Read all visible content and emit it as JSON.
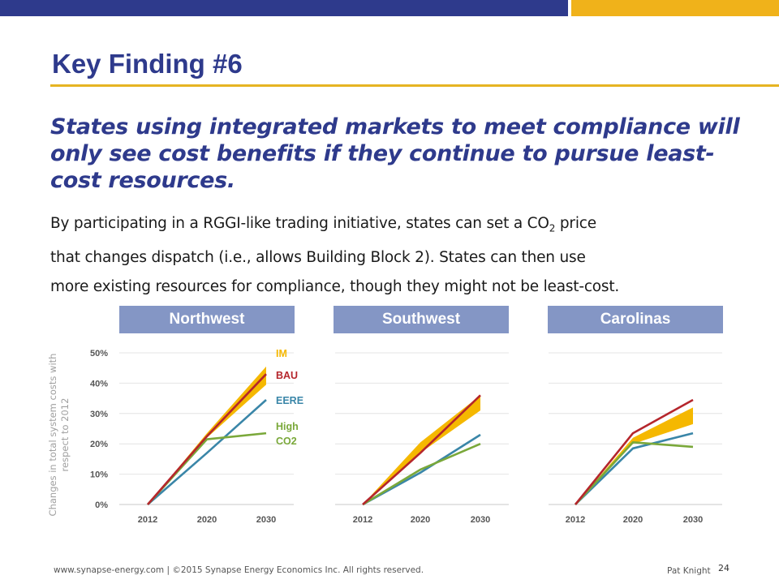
{
  "header": {
    "title": "Key Finding #6",
    "headline": "States using integrated markets to meet compliance will only see cost benefits if they continue to pursue least-cost resources.",
    "body": {
      "line1_a": "By participating in a RGGI-like trading initiative, states can set a CO",
      "line1_sub": "2",
      "line1_b": " price",
      "line2": "that changes dispatch (i.e., allows Building Block 2). States can then use",
      "line3": "more existing resources for compliance, though they might not be least-cost."
    }
  },
  "colors": {
    "brand_blue": "#2e3a8c",
    "accent_gold": "#f0b21a",
    "panel_header": "#8496c5",
    "IM": "#f5b800",
    "BAU": "#b5262c",
    "EERE": "#3a86a8",
    "High_CO2": "#7aa83a"
  },
  "footer": {
    "source": "www.synapse-energy.com  |  ©2015 Synapse Energy Economics Inc. All rights reserved.",
    "author": "Pat Knight",
    "page": "24"
  },
  "chart_data": [
    {
      "type": "line",
      "title": "Northwest",
      "ylabel": "Changes in total system costs with respect to 2012",
      "x": [
        "2012",
        "2020",
        "2030"
      ],
      "yticks": [
        "0%",
        "10%",
        "20%",
        "30%",
        "40%",
        "50%"
      ],
      "ylim": [
        0,
        50
      ],
      "legend": [
        {
          "label": "IM",
          "color": "#f5b800"
        },
        {
          "label": "BAU",
          "color": "#b5262c"
        },
        {
          "label": "EERE",
          "color": "#3a86a8"
        },
        {
          "label": "High CO2",
          "color": "#7aa83a"
        }
      ],
      "series": [
        {
          "name": "BAU",
          "values": [
            0,
            22.5,
            43
          ]
        },
        {
          "name": "EERE",
          "values": [
            0,
            17,
            34.5
          ]
        },
        {
          "name": "High CO2",
          "values": [
            0,
            21.5,
            23.5
          ]
        }
      ],
      "band": {
        "name": "IM",
        "lower": [
          0,
          22,
          39.5
        ],
        "upper": [
          0,
          23.5,
          45.5
        ]
      }
    },
    {
      "type": "line",
      "title": "Southwest",
      "x": [
        "2012",
        "2020",
        "2030"
      ],
      "ylim": [
        0,
        50
      ],
      "series": [
        {
          "name": "BAU",
          "values": [
            0,
            17,
            36
          ]
        },
        {
          "name": "EERE",
          "values": [
            0,
            10.5,
            23
          ]
        },
        {
          "name": "High CO2",
          "values": [
            0,
            11.5,
            20
          ]
        }
      ],
      "band": {
        "name": "IM",
        "lower": [
          0,
          17,
          31
        ],
        "upper": [
          0,
          20.5,
          36
        ]
      }
    },
    {
      "type": "line",
      "title": "Carolinas",
      "x": [
        "2012",
        "2020",
        "2030"
      ],
      "ylim": [
        0,
        50
      ],
      "series": [
        {
          "name": "BAU",
          "values": [
            0,
            23.5,
            34.5
          ]
        },
        {
          "name": "EERE",
          "values": [
            0,
            18.5,
            23.5
          ]
        },
        {
          "name": "High CO2",
          "values": [
            0,
            20.5,
            19
          ]
        }
      ],
      "band": {
        "name": "IM",
        "lower": [
          0,
          20,
          26.5
        ],
        "upper": [
          0,
          22,
          32
        ]
      }
    }
  ]
}
